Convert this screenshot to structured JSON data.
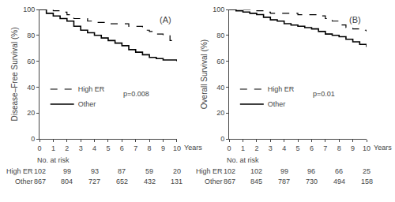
{
  "chart_data": [
    {
      "type": "step",
      "ylabel": "Disease–Free Survival (%)",
      "xlabel": "Years",
      "annotations": [
        "(A)",
        "p=0.008"
      ],
      "x": [
        0,
        0.5,
        1,
        1.5,
        2,
        2.5,
        3,
        3.5,
        4,
        4.5,
        5,
        5.5,
        6,
        6.5,
        7,
        7.5,
        8,
        8.5,
        9,
        9.5,
        10
      ],
      "series": [
        {
          "name": "High ER",
          "color": "black",
          "line_style": "dashed",
          "values": [
            100,
            100,
            99,
            98,
            96,
            93,
            93,
            91,
            90,
            90,
            89,
            89,
            89,
            87,
            87,
            84,
            83,
            81,
            80,
            76,
            75
          ]
        },
        {
          "name": "Other",
          "color": "black",
          "line_style": "solid",
          "values": [
            100,
            97,
            95,
            93,
            91,
            87,
            84,
            82,
            80,
            78,
            76,
            74,
            72,
            69,
            67,
            65,
            63,
            62,
            61,
            61,
            60
          ]
        }
      ],
      "xlim": [
        0,
        10
      ],
      "xticks": [
        0,
        1,
        2,
        3,
        4,
        5,
        6,
        7,
        8,
        9,
        10
      ],
      "ylim": [
        0,
        100
      ],
      "yticks": [
        0,
        20,
        40,
        60,
        80,
        100
      ],
      "grid": false,
      "legend": "lower left",
      "risk_table": {
        "title": "No. at risk",
        "x": [
          0,
          2,
          4,
          6,
          8,
          10
        ],
        "rows": [
          {
            "name": "High ER",
            "values": [
              102,
              99,
              93,
              87,
              59,
              20
            ]
          },
          {
            "name": "Other",
            "values": [
              867,
              804,
              727,
              652,
              432,
              131
            ]
          }
        ]
      }
    },
    {
      "type": "step",
      "ylabel": "Overall Survival (%)",
      "xlabel": "Years",
      "annotations": [
        "(B)",
        "p=0.01"
      ],
      "x": [
        0,
        0.5,
        1,
        1.5,
        2,
        2.5,
        3,
        3.5,
        4,
        4.5,
        5,
        5.5,
        6,
        6.5,
        7,
        7.5,
        8,
        8.5,
        9,
        9.5,
        10
      ],
      "series": [
        {
          "name": "High ER",
          "color": "black",
          "line_style": "dashed",
          "values": [
            100,
            100,
            100,
            100,
            99,
            98,
            97,
            97,
            97,
            97,
            96,
            96,
            96,
            95,
            93,
            91,
            88,
            86,
            85,
            84,
            83
          ]
        },
        {
          "name": "Other",
          "color": "black",
          "line_style": "solid",
          "values": [
            100,
            99,
            98,
            97,
            96,
            94,
            92,
            91,
            89,
            88,
            87,
            86,
            85,
            83,
            81,
            80,
            79,
            77,
            75,
            73,
            71
          ]
        }
      ],
      "xlim": [
        0,
        10
      ],
      "xticks": [
        0,
        1,
        2,
        3,
        4,
        5,
        6,
        7,
        8,
        9,
        10
      ],
      "ylim": [
        0,
        100
      ],
      "yticks": [
        0,
        20,
        40,
        60,
        80,
        100
      ],
      "grid": false,
      "legend": "lower left",
      "risk_table": {
        "title": "No. at risk",
        "x": [
          0,
          2,
          4,
          6,
          8,
          10
        ],
        "rows": [
          {
            "name": "High ER",
            "values": [
              102,
              102,
              99,
              96,
              66,
              25
            ]
          },
          {
            "name": "Other",
            "values": [
              867,
              845,
              787,
              730,
              494,
              158
            ]
          }
        ]
      }
    }
  ]
}
